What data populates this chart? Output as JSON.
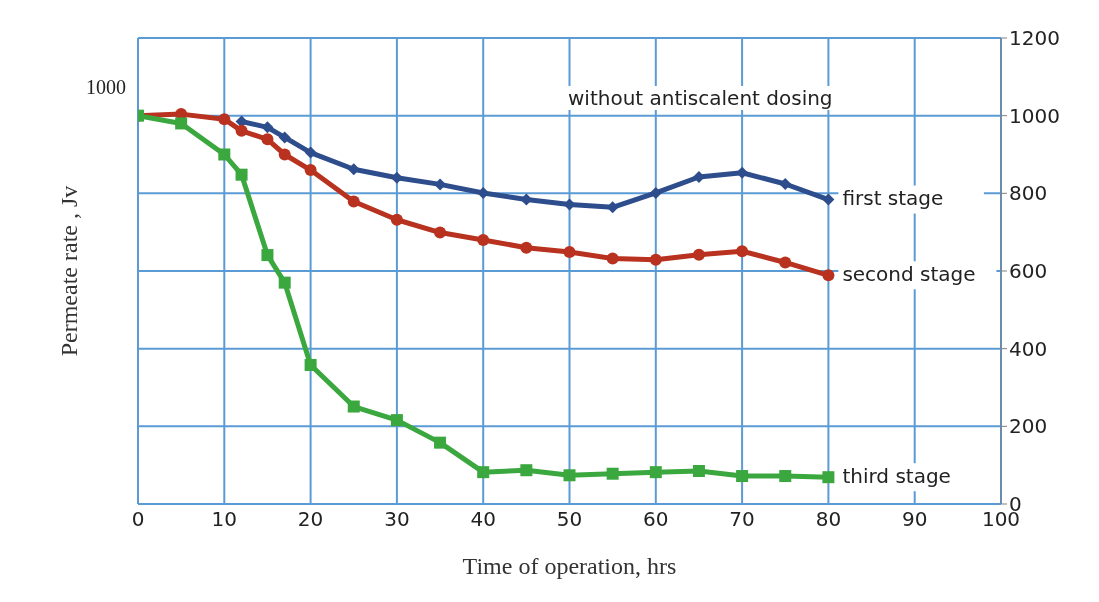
{
  "chart_data": {
    "type": "line",
    "xlabel": "Time of operation, hrs",
    "ylabel": "Permeate rate , Jv",
    "annotations": [
      "without antiscalent dosing",
      "1000"
    ],
    "xlim": [
      0,
      100
    ],
    "xticks": [
      0,
      10,
      20,
      30,
      40,
      50,
      60,
      70,
      80,
      90,
      100
    ],
    "ylim": [
      0,
      1200
    ],
    "yticks": [
      0,
      200,
      400,
      600,
      800,
      1000,
      1200
    ],
    "grid": true,
    "legend": false,
    "line_style": "solid",
    "series": [
      {
        "name": "first stage",
        "color": "#2e4d8c",
        "marker": "diamond",
        "x": [
          12,
          15,
          17,
          20,
          25,
          30,
          35,
          40,
          45,
          50,
          55,
          60,
          65,
          70,
          75,
          80
        ],
        "values": [
          985,
          970,
          944,
          905,
          862,
          840,
          823,
          801,
          784,
          771,
          764,
          801,
          842,
          853,
          824,
          784
        ]
      },
      {
        "name": "second stage",
        "color": "#b8321f",
        "marker": "circle",
        "x": [
          0,
          5,
          10,
          12,
          15,
          17,
          20,
          25,
          30,
          35,
          40,
          45,
          50,
          55,
          60,
          65,
          70,
          75,
          80
        ],
        "values": [
          1000,
          1004,
          991,
          961,
          939,
          900,
          860,
          779,
          732,
          699,
          680,
          660,
          649,
          632,
          629,
          642,
          651,
          622,
          589
        ]
      },
      {
        "name": "third stage",
        "color": "#3aa83e",
        "marker": "square",
        "x": [
          0,
          5,
          10,
          12,
          15,
          17,
          20,
          25,
          30,
          35,
          40,
          45,
          50,
          55,
          60,
          65,
          70,
          75,
          80
        ],
        "values": [
          1000,
          980,
          900,
          848,
          641,
          570,
          358,
          251,
          216,
          158,
          82,
          87,
          74,
          78,
          82,
          85,
          72,
          72,
          69
        ]
      }
    ]
  }
}
